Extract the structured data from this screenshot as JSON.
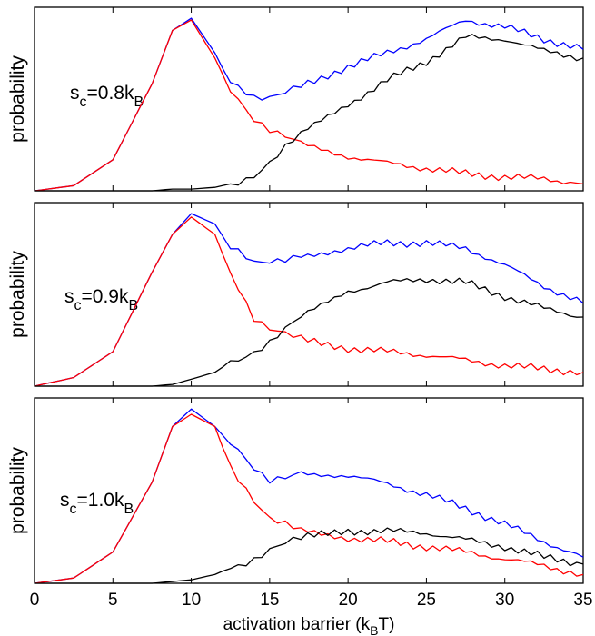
{
  "chart_data": [
    {
      "type": "line",
      "ylabel": "probability",
      "annotation": {
        "main": "s",
        "sub1": "c",
        "mid": "=0.8k",
        "sub2": "B"
      },
      "xlim": [
        0,
        35
      ],
      "ylim": [
        0,
        1
      ],
      "colors": {
        "blue": "#0000ff",
        "red": "#ff0000",
        "black": "#000000"
      },
      "x": [
        0,
        2.5,
        5,
        7.5,
        8.8,
        10,
        11.5,
        12.5,
        14,
        15,
        17,
        20,
        22.5,
        25,
        27.5,
        30,
        32.5,
        35
      ],
      "series": [
        {
          "values": [
            0,
            0.03,
            0.18,
            0.62,
            0.93,
            1.0,
            0.8,
            0.62,
            0.54,
            0.55,
            0.61,
            0.72,
            0.8,
            0.88,
            0.99,
            0.95,
            0.88,
            0.82
          ]
        },
        {
          "values": [
            0,
            0.03,
            0.18,
            0.62,
            0.93,
            0.99,
            0.77,
            0.58,
            0.42,
            0.36,
            0.27,
            0.2,
            0.16,
            0.13,
            0.1,
            0.08,
            0.07,
            0.04
          ]
        },
        {
          "values": [
            0,
            0,
            0,
            0,
            0.01,
            0.01,
            0.02,
            0.04,
            0.09,
            0.16,
            0.33,
            0.5,
            0.64,
            0.75,
            0.89,
            0.88,
            0.81,
            0.77
          ]
        }
      ]
    },
    {
      "type": "line",
      "ylabel": "probability",
      "annotation": {
        "main": "s",
        "sub1": "c",
        "mid": "=0.9k",
        "sub2": "B"
      },
      "xlim": [
        0,
        35
      ],
      "ylim": [
        0,
        1
      ],
      "colors": {
        "blue": "#0000ff",
        "red": "#ff0000",
        "black": "#000000"
      },
      "x": [
        0,
        2.5,
        5,
        7.5,
        8.8,
        10,
        11.5,
        12.5,
        14,
        15,
        17,
        20,
        22.5,
        25,
        27.5,
        30,
        32.5,
        35
      ],
      "series": [
        {
          "values": [
            0,
            0.05,
            0.2,
            0.66,
            0.88,
            1.0,
            0.94,
            0.8,
            0.72,
            0.73,
            0.75,
            0.8,
            0.83,
            0.83,
            0.8,
            0.7,
            0.58,
            0.48
          ]
        },
        {
          "values": [
            0,
            0.05,
            0.2,
            0.66,
            0.88,
            0.98,
            0.88,
            0.65,
            0.4,
            0.34,
            0.27,
            0.22,
            0.2,
            0.18,
            0.15,
            0.12,
            0.1,
            0.08
          ]
        },
        {
          "values": [
            0,
            0,
            0,
            0,
            0.01,
            0.04,
            0.08,
            0.14,
            0.2,
            0.25,
            0.4,
            0.55,
            0.6,
            0.62,
            0.6,
            0.52,
            0.45,
            0.4
          ]
        }
      ]
    },
    {
      "type": "line",
      "ylabel": "probability",
      "xlabel": {
        "main": "activation barrier (k",
        "sub": "B",
        "end": "T)"
      },
      "annotation": {
        "main": "s",
        "sub1": "c",
        "mid": "=1.0k",
        "sub2": "B"
      },
      "xlim": [
        0,
        35
      ],
      "xticks": [
        0,
        5,
        10,
        15,
        20,
        25,
        30,
        35
      ],
      "ylim": [
        0,
        1
      ],
      "colors": {
        "blue": "#0000ff",
        "red": "#ff0000",
        "black": "#000000"
      },
      "x": [
        0,
        2.5,
        5,
        7.5,
        8.8,
        10,
        11.5,
        12.5,
        14,
        15,
        17,
        20,
        22.5,
        25,
        27.5,
        30,
        32.5,
        35
      ],
      "series": [
        {
          "values": [
            0,
            0.03,
            0.18,
            0.58,
            0.9,
            1.0,
            0.9,
            0.8,
            0.66,
            0.6,
            0.63,
            0.62,
            0.57,
            0.51,
            0.43,
            0.34,
            0.24,
            0.15
          ]
        },
        {
          "values": [
            0,
            0.03,
            0.18,
            0.58,
            0.9,
            0.97,
            0.9,
            0.66,
            0.48,
            0.38,
            0.3,
            0.26,
            0.24,
            0.21,
            0.18,
            0.14,
            0.1,
            0.05
          ]
        },
        {
          "values": [
            0,
            0,
            0,
            0,
            0.01,
            0.02,
            0.05,
            0.09,
            0.14,
            0.19,
            0.26,
            0.3,
            0.3,
            0.29,
            0.25,
            0.21,
            0.15,
            0.11
          ]
        }
      ]
    }
  ]
}
